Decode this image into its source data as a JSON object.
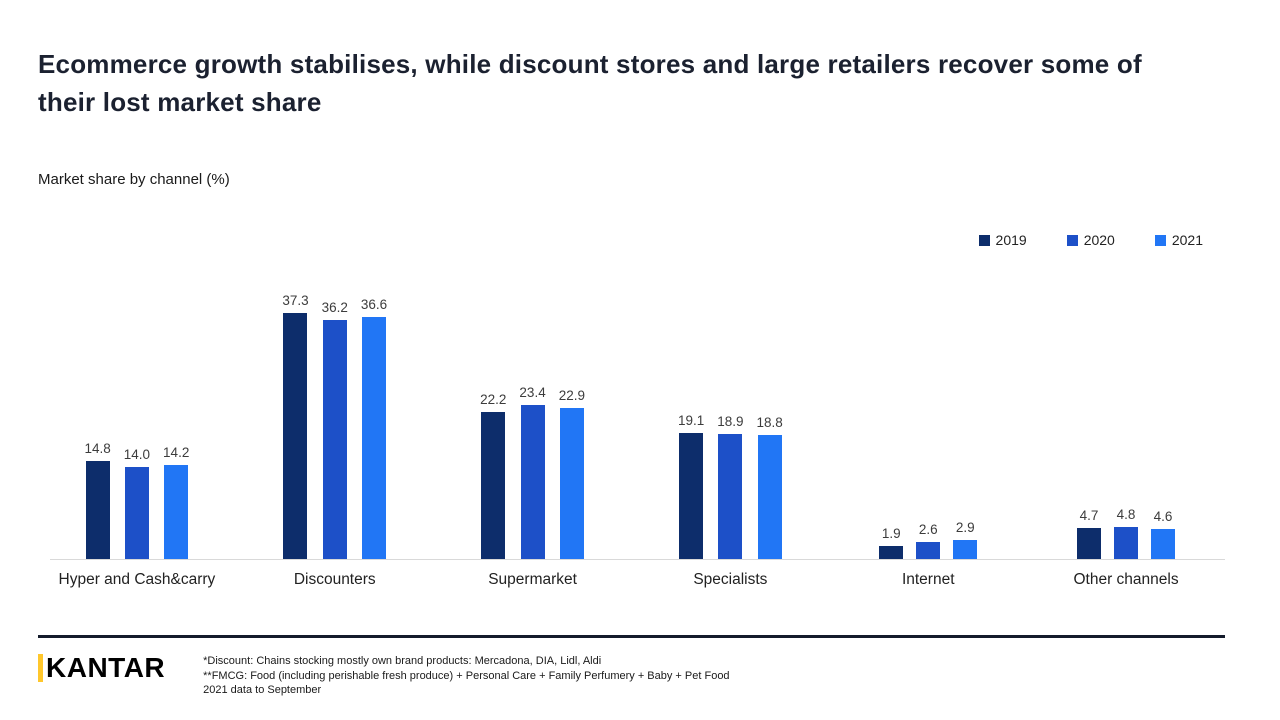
{
  "header": {
    "title": "Ecommerce growth stabilises, while discount stores and large retailers recover some of their lost market share",
    "subtitle": "Market share by channel (%)"
  },
  "chart_data": {
    "type": "bar",
    "title": "Market share by channel (%)",
    "categories": [
      "Hyper and Cash&carry",
      "Discounters",
      "Supermarket",
      "Specialists",
      "Internet",
      "Other channels"
    ],
    "series": [
      {
        "name": "2019",
        "color": "#0d2d6b",
        "values": [
          14.8,
          37.3,
          22.2,
          19.1,
          1.9,
          4.7
        ]
      },
      {
        "name": "2020",
        "color": "#1d50c8",
        "values": [
          14.0,
          36.2,
          23.4,
          18.9,
          2.6,
          4.8
        ]
      },
      {
        "name": "2021",
        "color": "#2176f5",
        "values": [
          14.2,
          36.6,
          22.9,
          18.8,
          2.9,
          4.6
        ]
      }
    ],
    "ylim": [
      0,
      40
    ],
    "grid": false,
    "legend_position": "top-right",
    "value_labels": true
  },
  "footer": {
    "logo": "KANTAR",
    "notes": [
      "*Discount: Chains stocking mostly own brand products: Mercadona, DIA, Lidl, Aldi",
      "**FMCG: Food (including perishable fresh produce) + Personal Care + Family Perfumery + Baby + Pet Food",
      "2021 data to September"
    ]
  },
  "colors": {
    "accent": "#ffc72c",
    "title_text": "#1b2130",
    "axis_line": "#d9d9d9"
  }
}
